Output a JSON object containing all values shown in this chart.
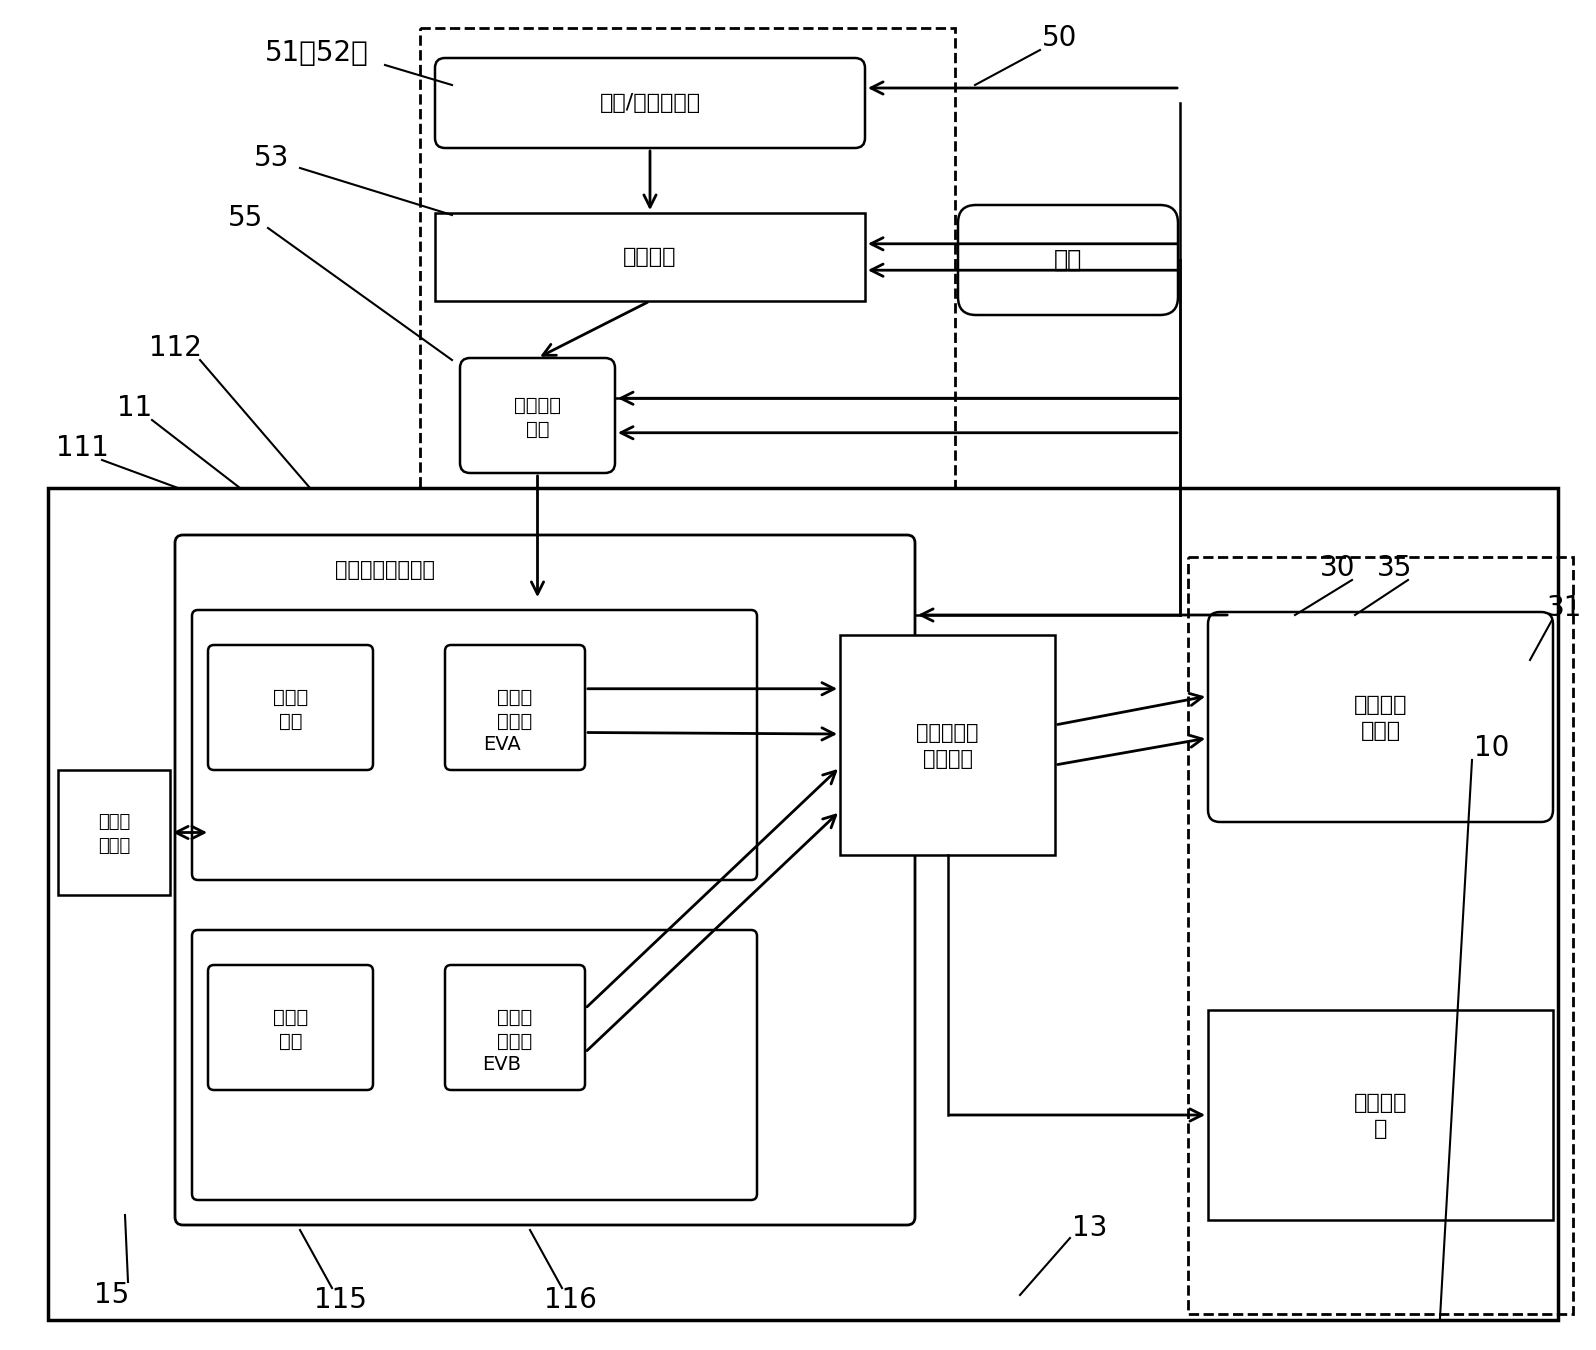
{
  "label_51_52": "51（52）",
  "label_50": "50",
  "label_53": "53",
  "label_55": "55",
  "label_112": "112",
  "label_11": "11",
  "label_111": "111",
  "label_10": "10",
  "label_13": "13",
  "label_15": "15",
  "label_115": "115",
  "label_116": "116",
  "label_30": "30",
  "label_35": "35",
  "label_31": "31",
  "box_sensor": "电压/电流传感器",
  "box_conditioning": "调理电路",
  "box_adc_l1": "模数转换",
  "box_adc_l2": "芝片",
  "box_power": "电源",
  "box_dsp": "数字信号处理芝片",
  "box_timer1_l1": "第一定",
  "box_timer1_l2": "时器",
  "box_eva": "EVA",
  "box_compare1_l1": "第一比",
  "box_compare1_l2": "较单元",
  "box_timer2_l1": "第二定",
  "box_timer2_l2": "时器",
  "box_evb": "EVB",
  "box_compare2_l1": "第二比",
  "box_compare2_l2": "较单元",
  "box_cpld_l1": "复杂可编程",
  "box_cpld_l2": "逻辑器件",
  "box_io_l1": "输入输",
  "box_io_l2": "出电路",
  "box_3phase_l1": "三相周波",
  "box_3phase_l2": "变换器",
  "box_brush_l1": "推括变换",
  "box_brush_l2": "器"
}
